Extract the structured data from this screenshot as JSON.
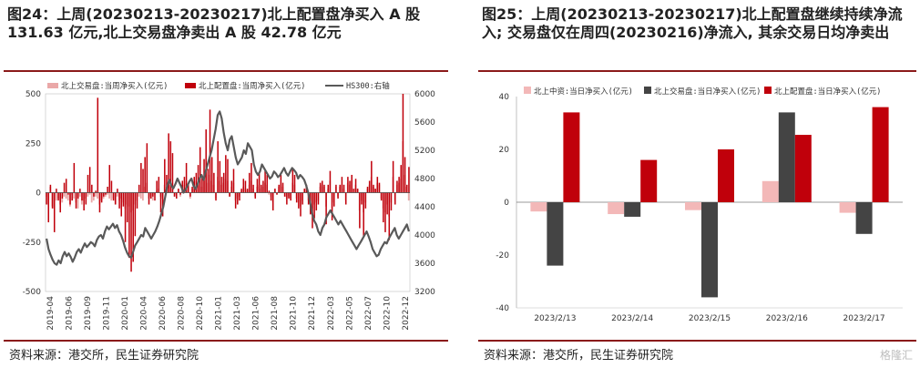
{
  "colors": {
    "trading": "#eaa8a8",
    "allocation": "#c0000b",
    "hs300": "#595959",
    "rule": "#8b1a1a",
    "hk_bar": "#f3b8b8",
    "trade_bar": "#444444"
  },
  "left": {
    "title": "图24：上周(20230213-20230217)北上配置盘净买入 A 股 131.63 亿元,北上交易盘净卖出 A 股 42.78 亿元",
    "source": "资料来源：港交所，民生证券研究院",
    "chart_data": {
      "type": "bar",
      "legend": [
        "北上交易盘:当周净买入(亿元)",
        "北上配置盘:当周净买入(亿元)",
        "HS300:右轴"
      ],
      "yticks_left": [
        "500",
        "250",
        "0",
        "-250",
        "-500"
      ],
      "yticks_right": [
        "6000",
        "5600",
        "5200",
        "4800",
        "4400",
        "4000",
        "3600",
        "3200"
      ],
      "ylim_left": [
        -500,
        500
      ],
      "ylim_right": [
        3200,
        6000
      ],
      "xticks": [
        "2019-04",
        "2019-06",
        "2019-09",
        "2019-11",
        "2020-01",
        "2020-04",
        "2020-06",
        "2020-08",
        "2020-10",
        "2021-01",
        "2021-03",
        "2021-06",
        "2021-08",
        "2021-10",
        "2021-12",
        "2022-03",
        "2022-05",
        "2022-07",
        "2022-10",
        "2022-12"
      ],
      "allocation_values": [
        -60,
        -150,
        40,
        -80,
        -200,
        20,
        -40,
        -100,
        -30,
        50,
        70,
        -10,
        -60,
        -40,
        150,
        -80,
        -30,
        20,
        -40,
        -90,
        -60,
        90,
        130,
        40,
        -20,
        10,
        480,
        -100,
        -50,
        -20,
        -10,
        30,
        140,
        60,
        -40,
        -60,
        20,
        -80,
        -120,
        -70,
        -250,
        -150,
        -330,
        -400,
        -350,
        -220,
        -80,
        40,
        150,
        120,
        180,
        250,
        -60,
        -30,
        -20,
        -40,
        60,
        80,
        -100,
        -120,
        170,
        90,
        300,
        260,
        200,
        -20,
        -30,
        20,
        -10,
        60,
        80,
        150,
        40,
        -20,
        30,
        80,
        100,
        140,
        230,
        80,
        170,
        320,
        120,
        420,
        180,
        100,
        -40,
        260,
        160,
        80,
        100,
        190,
        170,
        -20,
        60,
        120,
        -80,
        -60,
        -40,
        20,
        70,
        60,
        20,
        100,
        150,
        40,
        -30,
        70,
        100,
        40,
        60,
        110,
        90,
        10,
        -40,
        -90,
        20,
        -10,
        40,
        90,
        50,
        -20,
        -60,
        -30,
        -40,
        120,
        90,
        -50,
        -80,
        -120,
        -60,
        20,
        40,
        -60,
        -110,
        -180,
        -130,
        -90,
        -60,
        50,
        60,
        40,
        -160,
        40,
        110,
        -140,
        -70,
        40,
        -30,
        40,
        80,
        40,
        -60,
        80,
        60,
        90,
        20,
        70,
        20,
        -180,
        -60,
        -220,
        -80,
        30,
        60,
        160,
        40,
        20,
        80,
        50,
        -40,
        -150,
        -200,
        -110,
        -240,
        -90,
        160,
        -60,
        60,
        80,
        140,
        500,
        180,
        40,
        130
      ],
      "trading_values": [
        -20,
        -60,
        30,
        -70,
        -80,
        -40,
        -30,
        -60,
        -50,
        -20,
        -30,
        -40,
        -70,
        -10,
        -30,
        -50,
        -80,
        -20,
        -60,
        -40,
        -30,
        -20,
        -10,
        -50,
        -40,
        -20,
        -30,
        -60,
        -40,
        -30,
        -20,
        -10,
        -30,
        -40,
        -30,
        -60,
        -20,
        -40,
        -30,
        -50,
        -80,
        -60,
        -70,
        -100,
        -90,
        -60,
        -40,
        -20,
        -30,
        -40,
        30,
        50,
        -30,
        -20,
        -40,
        -10,
        10,
        20,
        -20,
        -30,
        40,
        30,
        50,
        40,
        30,
        -20,
        -10,
        20,
        -20,
        30,
        40,
        60,
        20,
        -30,
        20,
        40,
        60,
        50,
        70,
        30,
        60,
        80,
        50,
        90,
        60,
        40,
        -30,
        80,
        60,
        40,
        50,
        70,
        60,
        -20,
        30,
        50,
        -40,
        -30,
        -20,
        10,
        30,
        20,
        10,
        40,
        60,
        20,
        -20,
        30,
        40,
        20,
        30,
        50,
        40,
        -10,
        -20,
        -50,
        20,
        -10,
        30,
        40,
        30,
        -20,
        -30,
        -20,
        -30,
        50,
        40,
        -30,
        -50,
        -70,
        -40,
        20,
        30,
        -40,
        -60,
        -80,
        -60,
        -50,
        -40,
        30,
        40,
        30,
        -70,
        20,
        60,
        -80,
        -50,
        30,
        -20,
        30,
        40,
        20,
        -40,
        50,
        40,
        60,
        20,
        40,
        20,
        -90,
        -40,
        -100,
        -50,
        20,
        40,
        80,
        30,
        20,
        50,
        40,
        -30,
        -80,
        -100,
        -60,
        -120,
        -50,
        80,
        -40,
        40,
        50,
        70,
        260,
        90,
        30,
        -40
      ],
      "hs300_values": [
        3950,
        3800,
        3720,
        3650,
        3600,
        3580,
        3640,
        3600,
        3700,
        3760,
        3700,
        3740,
        3690,
        3620,
        3680,
        3760,
        3800,
        3750,
        3820,
        3880,
        3830,
        3860,
        3900,
        3880,
        3840,
        3930,
        3980,
        4000,
        3950,
        4050,
        4120,
        4080,
        4120,
        4160,
        4100,
        4140,
        4050,
        4000,
        3920,
        3820,
        3750,
        3700,
        3680,
        3760,
        3850,
        3900,
        3950,
        4000,
        3980,
        4100,
        4050,
        4000,
        3950,
        4000,
        4050,
        4120,
        4200,
        4300,
        4400,
        4550,
        4700,
        4780,
        4700,
        4660,
        4720,
        4800,
        4740,
        4680,
        4600,
        4640,
        4700,
        4760,
        4800,
        4700,
        4650,
        4720,
        4800,
        4850,
        4780,
        4900,
        5000,
        5100,
        5200,
        5350,
        5500,
        5700,
        5750,
        5650,
        5450,
        5300,
        5200,
        5350,
        5400,
        5250,
        5100,
        5000,
        5050,
        5100,
        5200,
        5150,
        5300,
        5250,
        5200,
        5000,
        4900,
        4850,
        4900,
        5000,
        4950,
        4900,
        4850,
        4800,
        4830,
        4900,
        4870,
        4820,
        4850,
        4900,
        4950,
        4880,
        4840,
        4900,
        4950,
        4920,
        4880,
        4800,
        4850,
        4820,
        4780,
        4700,
        4600,
        4450,
        4300,
        4200,
        4150,
        4050,
        4000,
        4100,
        4150,
        4250,
        4300,
        4350,
        4300,
        4250,
        4200,
        4150,
        4200,
        4150,
        4100,
        4050,
        4000,
        3950,
        3900,
        3850,
        3800,
        3850,
        3900,
        3950,
        4000,
        4050,
        3980,
        3900,
        3800,
        3750,
        3700,
        3720,
        3800,
        3850,
        3900,
        3880,
        3950,
        4000,
        4050,
        4100,
        4000,
        3950,
        4000,
        4050,
        4100,
        4150,
        4050
      ]
    }
  },
  "right": {
    "title": "图25：上周(20230213-20230217)北上配置盘继续持续净流入; 交易盘仅在周四(20230216)净流入, 其余交易日均净卖出",
    "source": "资料来源：港交所，民生证券研究院",
    "chart_data": {
      "type": "bar",
      "categories": [
        "2023/2/13",
        "2023/2/14",
        "2023/2/15",
        "2023/2/16",
        "2023/2/17"
      ],
      "series": [
        {
          "name": "北上中资:当日净买入(亿元)",
          "values": [
            -3.5,
            -4.5,
            -3,
            8,
            -4
          ]
        },
        {
          "name": "北上交易盘:当日净买入(亿元)",
          "values": [
            -24,
            -5.5,
            -36,
            34,
            -12
          ]
        },
        {
          "name": "北上配置盘:当日净买入(亿元)",
          "values": [
            34,
            16,
            20,
            25.5,
            36
          ]
        }
      ],
      "yticks": [
        "40",
        "20",
        "0",
        "-20",
        "-40"
      ],
      "ylim": [
        -40,
        40
      ]
    }
  },
  "watermark": "格隆汇"
}
